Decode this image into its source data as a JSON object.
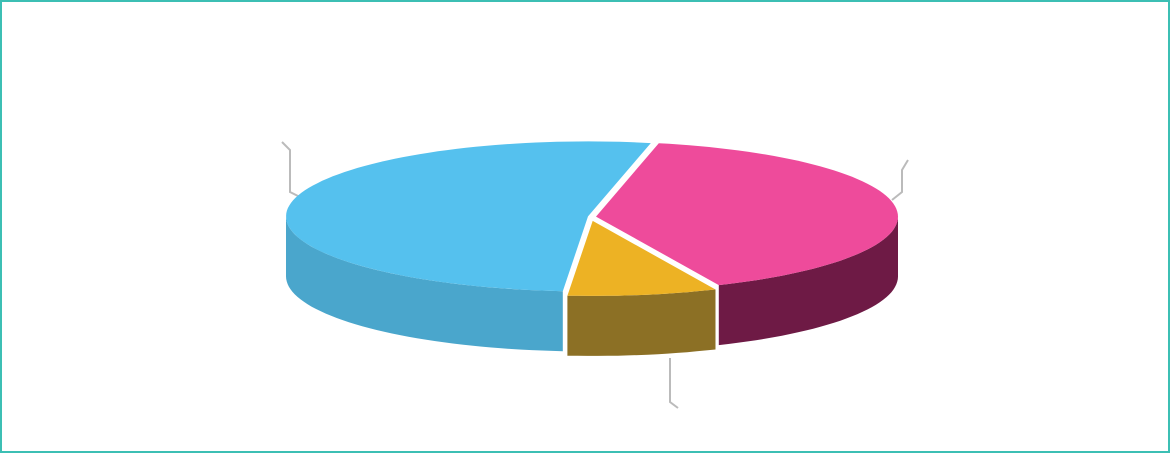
{
  "chart_data": {
    "type": "pie3d",
    "values": [
      40,
      8,
      52
    ],
    "colors": [
      "#ee4b9b",
      "#edb224",
      "#55c1ee"
    ],
    "side_colors": [
      "#6e1a45",
      "#8c7025",
      "#4aa6cc"
    ],
    "start_angle": 78
  }
}
